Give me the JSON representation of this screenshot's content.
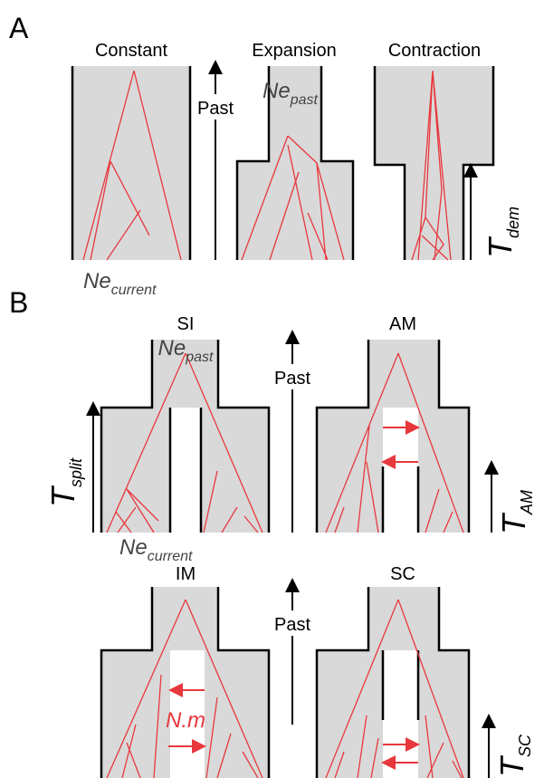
{
  "panel_a": {
    "label": "A",
    "constant": "Constant",
    "expansion": "Expansion",
    "contraction": "Contraction",
    "past": "Past",
    "ne_past": {
      "main": "Ne",
      "sub": "past"
    },
    "ne_current": {
      "main": "Ne",
      "sub": "current"
    },
    "t_dem": {
      "main": "T",
      "sub": "dem"
    }
  },
  "panel_b": {
    "label": "B",
    "si": "SI",
    "am": "AM",
    "im": "IM",
    "sc": "SC",
    "past_top": "Past",
    "past_bottom": "Past",
    "ne_past": {
      "main": "Ne",
      "sub": "past"
    },
    "ne_current": {
      "main": "Ne",
      "sub": "current"
    },
    "t_split": {
      "main": "T",
      "sub": "split"
    },
    "t_am": {
      "main": "T",
      "sub": "AM"
    },
    "t_sc": {
      "main": "T",
      "sub": "SC"
    },
    "migration": "N.m"
  }
}
